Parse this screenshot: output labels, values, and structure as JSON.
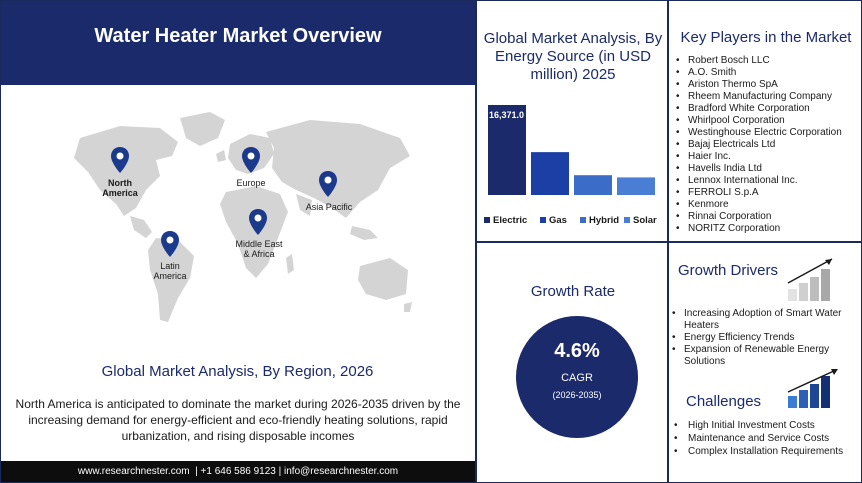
{
  "left": {
    "title": "Water Heater Market Overview",
    "map_pins": [
      {
        "name": "north-america",
        "label": "North\nAmerica",
        "bold": true
      },
      {
        "name": "europe",
        "label": "Europe",
        "bold": false
      },
      {
        "name": "asia-pacific",
        "label": "Asia Pacific",
        "bold": false
      },
      {
        "name": "middle-east-africa",
        "label": "Middle East\n& Africa",
        "bold": false
      },
      {
        "name": "latin-america",
        "label": "Latin\nAmerica",
        "bold": false
      }
    ],
    "region_title": "Global Market Analysis, By Region, 2026",
    "region_text": "North America is anticipated to dominate the market during 2026-2035 driven by the increasing demand for energy-efficient and eco-friendly heating solutions, rapid urbanization, and rising disposable incomes",
    "footer": "www.researchnester.com  | +1 646 586 9123 | info@researchnester.com"
  },
  "chart_data": {
    "type": "bar",
    "title": "Global Market Analysis, By Energy Source (in USD million) 2025",
    "categories": [
      "Electric",
      "Gas",
      "Hybrid",
      "Solar"
    ],
    "values": [
      16371.0,
      7800,
      3600,
      3200
    ],
    "data_labels": [
      "16,371.0",
      "",
      "",
      ""
    ],
    "colors": [
      "#1b2a6b",
      "#1c3fa6",
      "#3a6cc8",
      "#4a7ed4"
    ],
    "legend_position": "bottom",
    "grid": false
  },
  "key_players": {
    "title": "Key Players in the Market",
    "items": [
      "Robert Bosch LLC",
      "A.O. Smith",
      "Ariston Thermo SpA",
      "Rheem Manufacturing Company",
      "Bradford White Corporation",
      "Whirlpool Corporation",
      "Westinghouse Electric Corporation",
      "Bajaj Electricals Ltd",
      "Haier Inc.",
      "Havells India Ltd",
      "Lennox International Inc.",
      "FERROLI S.p.A",
      "Kenmore",
      "Rinnai Corporation",
      "NORITZ Corporation"
    ]
  },
  "growth_rate": {
    "title": "Growth Rate",
    "value": "4.6%",
    "label": "CAGR",
    "period": "(2026-2035)"
  },
  "growth_drivers": {
    "title": "Growth Drivers",
    "items": [
      "Increasing Adoption of Smart Water Heaters",
      "Energy Efficiency Trends",
      "Expansion of Renewable Energy Solutions"
    ]
  },
  "challenges": {
    "title": "Challenges",
    "items": [
      "High Initial Investment Costs",
      "Maintenance and Service Costs",
      "Complex Installation Requirements"
    ]
  },
  "colors": {
    "navy": "#1b2a6b",
    "map_grey": "#d4d4d4",
    "footer_bg": "#0d0d0d"
  }
}
